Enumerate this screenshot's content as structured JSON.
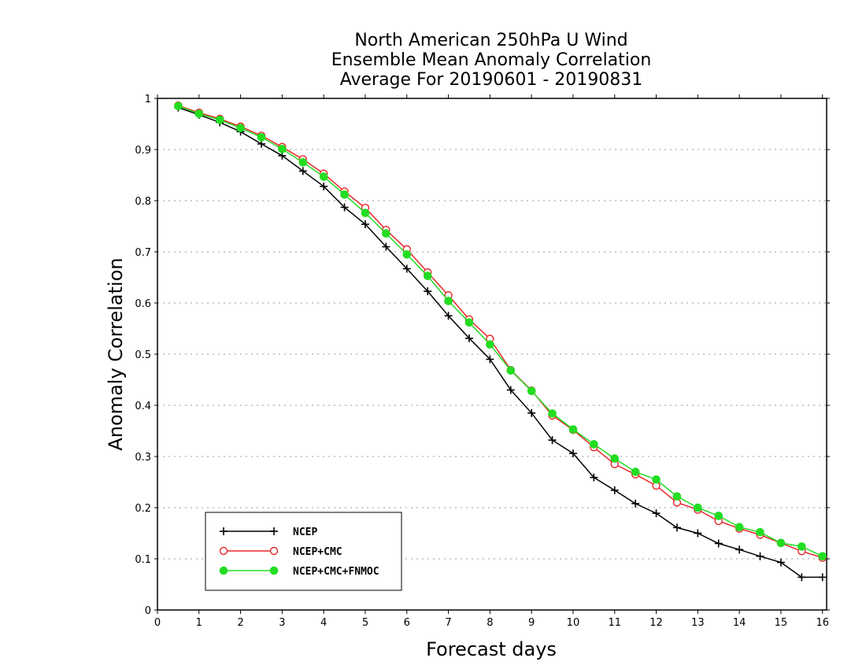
{
  "chart_data": {
    "type": "line",
    "title": [
      "North American 250hPa U Wind",
      "Ensemble Mean Anomaly Correlation",
      "Average For 20190601 - 20190831"
    ],
    "xlabel": "Forecast days",
    "ylabel": "Anomaly Correlation",
    "xlim": [
      0,
      16.1
    ],
    "ylim": [
      0,
      1
    ],
    "xticks": [
      "0",
      "1",
      "2",
      "3",
      "4",
      "5",
      "6",
      "7",
      "8",
      "9",
      "10",
      "11",
      "12",
      "13",
      "14",
      "15",
      "16"
    ],
    "yticks": [
      "0",
      "0.1",
      "0.2",
      "0.3",
      "0.4",
      "0.5",
      "0.6",
      "0.7",
      "0.8",
      "0.9",
      "1"
    ],
    "grid": "horizontal-dotted",
    "legend_position": "bottom-left",
    "x": [
      0.5,
      1,
      1.5,
      2,
      2.5,
      3,
      3.5,
      4,
      4.5,
      5,
      5.5,
      6,
      6.5,
      7,
      7.5,
      8,
      8.5,
      9,
      9.5,
      10,
      10.5,
      11,
      11.5,
      12,
      12.5,
      13,
      13.5,
      14,
      14.5,
      15,
      15.5,
      16
    ],
    "series": [
      {
        "name": "NCEP",
        "color": "#000000",
        "marker": "plus",
        "values": [
          0.982,
          0.968,
          0.953,
          0.935,
          0.911,
          0.888,
          0.858,
          0.828,
          0.787,
          0.754,
          0.71,
          0.667,
          0.623,
          0.575,
          0.531,
          0.49,
          0.43,
          0.385,
          0.332,
          0.306,
          0.259,
          0.234,
          0.208,
          0.189,
          0.161,
          0.15,
          0.13,
          0.118,
          0.105,
          0.093,
          0.064,
          0.064
        ]
      },
      {
        "name": "NCEP+CMC",
        "color": "#e8262a",
        "marker": "open-circle",
        "values": [
          0.986,
          0.972,
          0.96,
          0.945,
          0.927,
          0.905,
          0.881,
          0.853,
          0.818,
          0.786,
          0.743,
          0.705,
          0.66,
          0.615,
          0.568,
          0.53,
          0.469,
          0.429,
          0.38,
          0.352,
          0.318,
          0.285,
          0.265,
          0.243,
          0.21,
          0.196,
          0.174,
          0.159,
          0.147,
          0.131,
          0.115,
          0.102
        ]
      },
      {
        "name": "NCEP+CMC+FNMOC",
        "color": "#22dd22",
        "marker": "filled-circle",
        "values": [
          0.985,
          0.97,
          0.958,
          0.942,
          0.924,
          0.901,
          0.875,
          0.847,
          0.812,
          0.776,
          0.736,
          0.695,
          0.653,
          0.604,
          0.562,
          0.519,
          0.468,
          0.428,
          0.384,
          0.353,
          0.324,
          0.296,
          0.27,
          0.255,
          0.222,
          0.2,
          0.184,
          0.162,
          0.152,
          0.131,
          0.124,
          0.105
        ]
      }
    ]
  }
}
